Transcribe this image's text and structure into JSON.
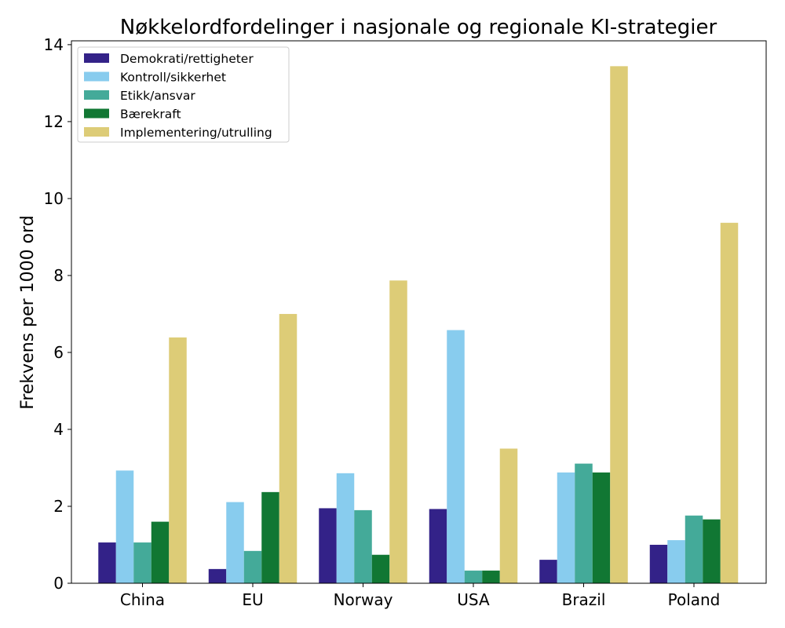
{
  "chart_data": {
    "type": "bar",
    "title": "Nøkkelordfordelinger i nasjonale og regionale KI-strategier",
    "xlabel": "",
    "ylabel": "Frekvens per 1000 ord",
    "ylim": [
      0,
      14.1
    ],
    "yticks": [
      0,
      2,
      4,
      6,
      8,
      10,
      12,
      14
    ],
    "categories": [
      "China",
      "EU",
      "Norway",
      "USA",
      "Brazil",
      "Poland"
    ],
    "legend_position": "top-left",
    "grid": false,
    "series": [
      {
        "name": "Demokrati/rettigheter",
        "color": "#332288",
        "values": [
          1.06,
          0.37,
          1.95,
          1.93,
          0.61,
          1.0
        ]
      },
      {
        "name": "Kontroll/sikkerhet",
        "color": "#88CCEE",
        "values": [
          2.93,
          2.11,
          2.86,
          6.58,
          2.88,
          1.12
        ]
      },
      {
        "name": "Etikk/ansvar",
        "color": "#44AA99",
        "values": [
          1.06,
          0.84,
          1.9,
          0.33,
          3.11,
          1.76
        ]
      },
      {
        "name": "Bærekraft",
        "color": "#117733",
        "values": [
          1.6,
          2.37,
          0.74,
          0.33,
          2.88,
          1.66
        ]
      },
      {
        "name": "Implementering/utrulling",
        "color": "#DDCC77",
        "values": [
          6.39,
          7.0,
          7.87,
          3.5,
          13.44,
          9.37
        ]
      }
    ]
  }
}
